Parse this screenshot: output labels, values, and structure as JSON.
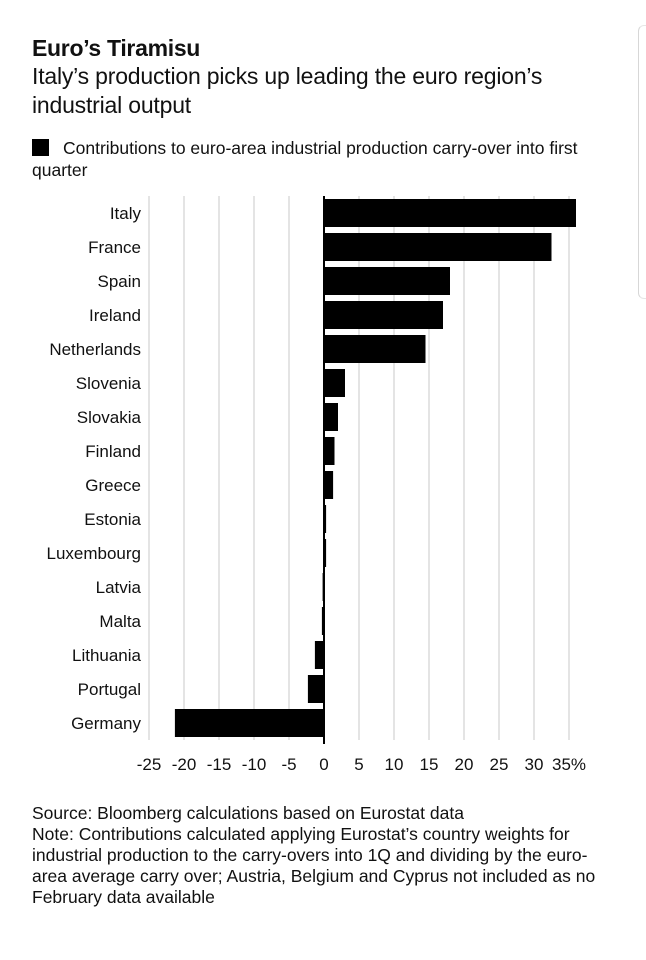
{
  "header": {
    "title": "Euro’s Tiramisu",
    "subtitle": "Italy’s production picks up leading the euro region’s industrial output"
  },
  "legend": {
    "label": "Contributions to euro-area industrial production carry-over into first quarter",
    "color": "#000000"
  },
  "footer": {
    "source": "Source: Bloomberg calculations based on Eurostat data",
    "note": "Note: Contributions calculated applying Eurostat’s country weights for industrial production to the carry-overs into 1Q and dividing by the euro-area average carry over; Austria, Belgium and Cyprus not included as no February data available"
  },
  "chart_data": {
    "type": "bar",
    "orientation": "horizontal",
    "categories": [
      "Italy",
      "France",
      "Spain",
      "Ireland",
      "Netherlands",
      "Slovenia",
      "Slovakia",
      "Finland",
      "Greece",
      "Estonia",
      "Luxembourg",
      "Latvia",
      "Malta",
      "Lithuania",
      "Portugal",
      "Germany"
    ],
    "values": [
      36,
      32.5,
      18,
      17,
      14.5,
      3,
      2,
      1.5,
      1.3,
      0.3,
      0.3,
      -0.2,
      -0.3,
      -1.3,
      -2.3,
      -21.3
    ],
    "xlim": [
      -25,
      37
    ],
    "xticks": [
      -25,
      -20,
      -15,
      -10,
      -5,
      0,
      5,
      10,
      15,
      20,
      25,
      30,
      35
    ],
    "xtick_labels": [
      "-25",
      "-20",
      "-15",
      "-10",
      "-5",
      "0",
      "5",
      "10",
      "15",
      "20",
      "25",
      "30",
      "35%"
    ],
    "bar_color": "#000000",
    "grid": "vertical",
    "grid_color": "#c8c8c8"
  }
}
